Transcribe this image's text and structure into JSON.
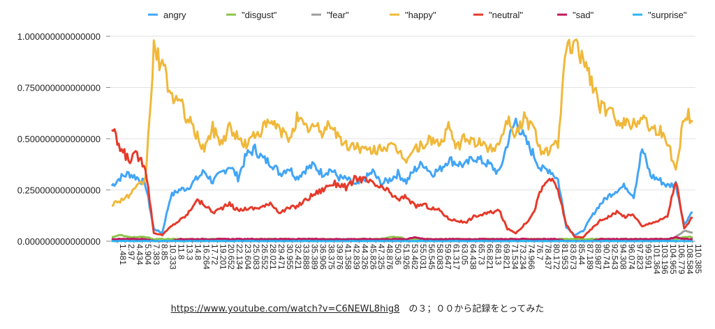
{
  "chart_data": {
    "type": "line",
    "title": "",
    "xlabel": "",
    "ylabel": "",
    "ylim": [
      0,
      1
    ],
    "y_ticks": [
      {
        "value": 0,
        "label": "0.000000000000000"
      },
      {
        "value": 0.25,
        "label": "0.250000000000000"
      },
      {
        "value": 0.5,
        "label": "0.500000000000000"
      },
      {
        "value": 0.75,
        "label": "0.750000000000000"
      },
      {
        "value": 1,
        "label": "1.000000000000000"
      }
    ],
    "x_ticks": [
      "1.481",
      "2.97",
      "4.434",
      "5.904",
      "7.383",
      "8.85",
      "10.333",
      "11.8",
      "13.3",
      "14.8",
      "16.264",
      "17.72",
      "19.201",
      "20.652",
      "22.134",
      "23.604",
      "25.083",
      "26.552",
      "28.021",
      "29.471",
      "30.955",
      "32.421",
      "33.888",
      "35.389",
      "36.906",
      "38.375",
      "39.876",
      "41.358",
      "42.839",
      "44.326",
      "45.826",
      "47.325",
      "48.876",
      "50.36",
      "51.926",
      "53.462",
      "55.031",
      "56.545",
      "58.083",
      "59.647",
      "61.317",
      "63.05",
      "64.438",
      "65.73",
      "66.821",
      "68.13",
      "69.821",
      "71.534",
      "73.234",
      "74.966",
      "76.7",
      "78.437",
      "80.172",
      "81.953",
      "83.673",
      "85.44",
      "87.189",
      "88.987",
      "90.741",
      "92.543",
      "94.308",
      "96.074",
      "97.823",
      "99.591",
      "101.364",
      "103.196",
      "104.965",
      "106.779",
      "108.584",
      "110.385"
    ],
    "legend_position": "top",
    "series": [
      {
        "name": "angry",
        "color": "#42A5F5",
        "values": [
          0.27,
          0.31,
          0.33,
          0.31,
          0.28,
          0.06,
          0.04,
          0.22,
          0.25,
          0.26,
          0.3,
          0.34,
          0.29,
          0.33,
          0.37,
          0.31,
          0.42,
          0.45,
          0.4,
          0.38,
          0.33,
          0.36,
          0.31,
          0.35,
          0.37,
          0.33,
          0.35,
          0.31,
          0.3,
          0.27,
          0.3,
          0.34,
          0.28,
          0.3,
          0.33,
          0.29,
          0.35,
          0.38,
          0.33,
          0.35,
          0.4,
          0.38,
          0.37,
          0.41,
          0.39,
          0.37,
          0.33,
          0.48,
          0.59,
          0.5,
          0.43,
          0.35,
          0.35,
          0.3,
          0.07,
          0.03,
          0.05,
          0.12,
          0.18,
          0.22,
          0.25,
          0.27,
          0.22,
          0.45,
          0.32,
          0.3,
          0.27,
          0.28,
          0.08,
          0.15
        ]
      },
      {
        "name": "\"disgust\"",
        "color": "#8BC34A",
        "values": [
          0.02,
          0.03,
          0.02,
          0.02,
          0.02,
          0.01,
          0.01,
          0.01,
          0.01,
          0.01,
          0.01,
          0.01,
          0.01,
          0.01,
          0.01,
          0.01,
          0.01,
          0.01,
          0.01,
          0.01,
          0.01,
          0.01,
          0.01,
          0.01,
          0.01,
          0.01,
          0.01,
          0.01,
          0.01,
          0.01,
          0.01,
          0.01,
          0.01,
          0.02,
          0.02,
          0.01,
          0.01,
          0.01,
          0.01,
          0.01,
          0.01,
          0.01,
          0.01,
          0.01,
          0.01,
          0.01,
          0.01,
          0.01,
          0.01,
          0.01,
          0.01,
          0.01,
          0.01,
          0.01,
          0.01,
          0.01,
          0.01,
          0.01,
          0.01,
          0.01,
          0.01,
          0.01,
          0.01,
          0.01,
          0.01,
          0.01,
          0.01,
          0.01,
          0.02,
          0.02
        ]
      },
      {
        "name": "\"fear\"",
        "color": "#9E9E9E",
        "values": [
          0.01,
          0.01,
          0.01,
          0.01,
          0.01,
          0.0,
          0.0,
          0.0,
          0.0,
          0.0,
          0.0,
          0.0,
          0.0,
          0.0,
          0.0,
          0.0,
          0.0,
          0.0,
          0.0,
          0.0,
          0.0,
          0.0,
          0.0,
          0.0,
          0.0,
          0.0,
          0.0,
          0.0,
          0.0,
          0.0,
          0.0,
          0.0,
          0.0,
          0.0,
          0.0,
          0.0,
          0.0,
          0.0,
          0.0,
          0.0,
          0.0,
          0.0,
          0.0,
          0.0,
          0.0,
          0.0,
          0.0,
          0.0,
          0.0,
          0.0,
          0.0,
          0.0,
          0.0,
          0.0,
          0.0,
          0.0,
          0.0,
          0.0,
          0.0,
          0.0,
          0.0,
          0.0,
          0.0,
          0.0,
          0.0,
          0.0,
          0.0,
          0.02,
          0.05,
          0.04
        ]
      },
      {
        "name": "\"happy\"",
        "color": "#F0B83A",
        "values": [
          0.18,
          0.2,
          0.22,
          0.26,
          0.3,
          0.93,
          0.86,
          0.72,
          0.68,
          0.6,
          0.52,
          0.45,
          0.55,
          0.48,
          0.56,
          0.5,
          0.47,
          0.52,
          0.55,
          0.58,
          0.54,
          0.5,
          0.6,
          0.55,
          0.56,
          0.53,
          0.58,
          0.5,
          0.46,
          0.47,
          0.44,
          0.44,
          0.46,
          0.46,
          0.44,
          0.4,
          0.45,
          0.47,
          0.5,
          0.47,
          0.55,
          0.46,
          0.5,
          0.49,
          0.47,
          0.45,
          0.48,
          0.6,
          0.52,
          0.6,
          0.56,
          0.45,
          0.44,
          0.48,
          0.94,
          0.95,
          0.9,
          0.78,
          0.66,
          0.63,
          0.6,
          0.58,
          0.57,
          0.62,
          0.55,
          0.55,
          0.48,
          0.35,
          0.62,
          0.6
        ]
      },
      {
        "name": "\"neutral\"",
        "color": "#E53A2A",
        "values": [
          0.55,
          0.45,
          0.4,
          0.42,
          0.37,
          0.04,
          0.03,
          0.07,
          0.1,
          0.13,
          0.2,
          0.18,
          0.14,
          0.16,
          0.18,
          0.15,
          0.16,
          0.16,
          0.17,
          0.18,
          0.14,
          0.16,
          0.17,
          0.2,
          0.23,
          0.25,
          0.28,
          0.28,
          0.26,
          0.31,
          0.3,
          0.28,
          0.26,
          0.24,
          0.2,
          0.22,
          0.17,
          0.18,
          0.16,
          0.15,
          0.11,
          0.1,
          0.09,
          0.12,
          0.13,
          0.14,
          0.15,
          0.06,
          0.04,
          0.08,
          0.13,
          0.25,
          0.31,
          0.25,
          0.08,
          0.02,
          0.02,
          0.06,
          0.1,
          0.12,
          0.14,
          0.12,
          0.13,
          0.07,
          0.09,
          0.1,
          0.12,
          0.3,
          0.06,
          0.12
        ]
      },
      {
        "name": "\"sad\"",
        "color": "#C2185B",
        "values": [
          0.01,
          0.01,
          0.01,
          0.01,
          0.01,
          0.0,
          0.0,
          0.0,
          0.01,
          0.01,
          0.01,
          0.01,
          0.01,
          0.01,
          0.01,
          0.01,
          0.01,
          0.01,
          0.01,
          0.01,
          0.01,
          0.01,
          0.01,
          0.01,
          0.01,
          0.01,
          0.01,
          0.01,
          0.01,
          0.01,
          0.01,
          0.01,
          0.01,
          0.01,
          0.01,
          0.01,
          0.02,
          0.01,
          0.01,
          0.01,
          0.01,
          0.01,
          0.01,
          0.01,
          0.01,
          0.01,
          0.01,
          0.01,
          0.01,
          0.01,
          0.01,
          0.01,
          0.01,
          0.01,
          0.0,
          0.0,
          0.0,
          0.0,
          0.01,
          0.01,
          0.01,
          0.01,
          0.01,
          0.01,
          0.01,
          0.01,
          0.01,
          0.02,
          0.01,
          0.01
        ]
      },
      {
        "name": "\"surprise\"",
        "color": "#29B6F6",
        "values": [
          0.0,
          0.0,
          0.0,
          0.0,
          0.0,
          0.0,
          0.0,
          0.0,
          0.0,
          0.0,
          0.0,
          0.0,
          0.0,
          0.0,
          0.0,
          0.0,
          0.0,
          0.0,
          0.0,
          0.0,
          0.0,
          0.0,
          0.0,
          0.0,
          0.0,
          0.0,
          0.0,
          0.0,
          0.0,
          0.0,
          0.0,
          0.0,
          0.0,
          0.0,
          0.0,
          0.0,
          0.0,
          0.0,
          0.0,
          0.0,
          0.0,
          0.0,
          0.0,
          0.0,
          0.0,
          0.0,
          0.0,
          0.0,
          0.0,
          0.0,
          0.0,
          0.0,
          0.0,
          0.0,
          0.0,
          0.0,
          0.0,
          0.0,
          0.0,
          0.0,
          0.0,
          0.0,
          0.0,
          0.0,
          0.0,
          0.0,
          0.0,
          0.0,
          0.0,
          0.0
        ]
      }
    ]
  },
  "caption": {
    "link_text": "https://www.youtube.com/watch?v=C6NEWL8hig8",
    "suffix": "　の３；００から記録をとってみた"
  }
}
